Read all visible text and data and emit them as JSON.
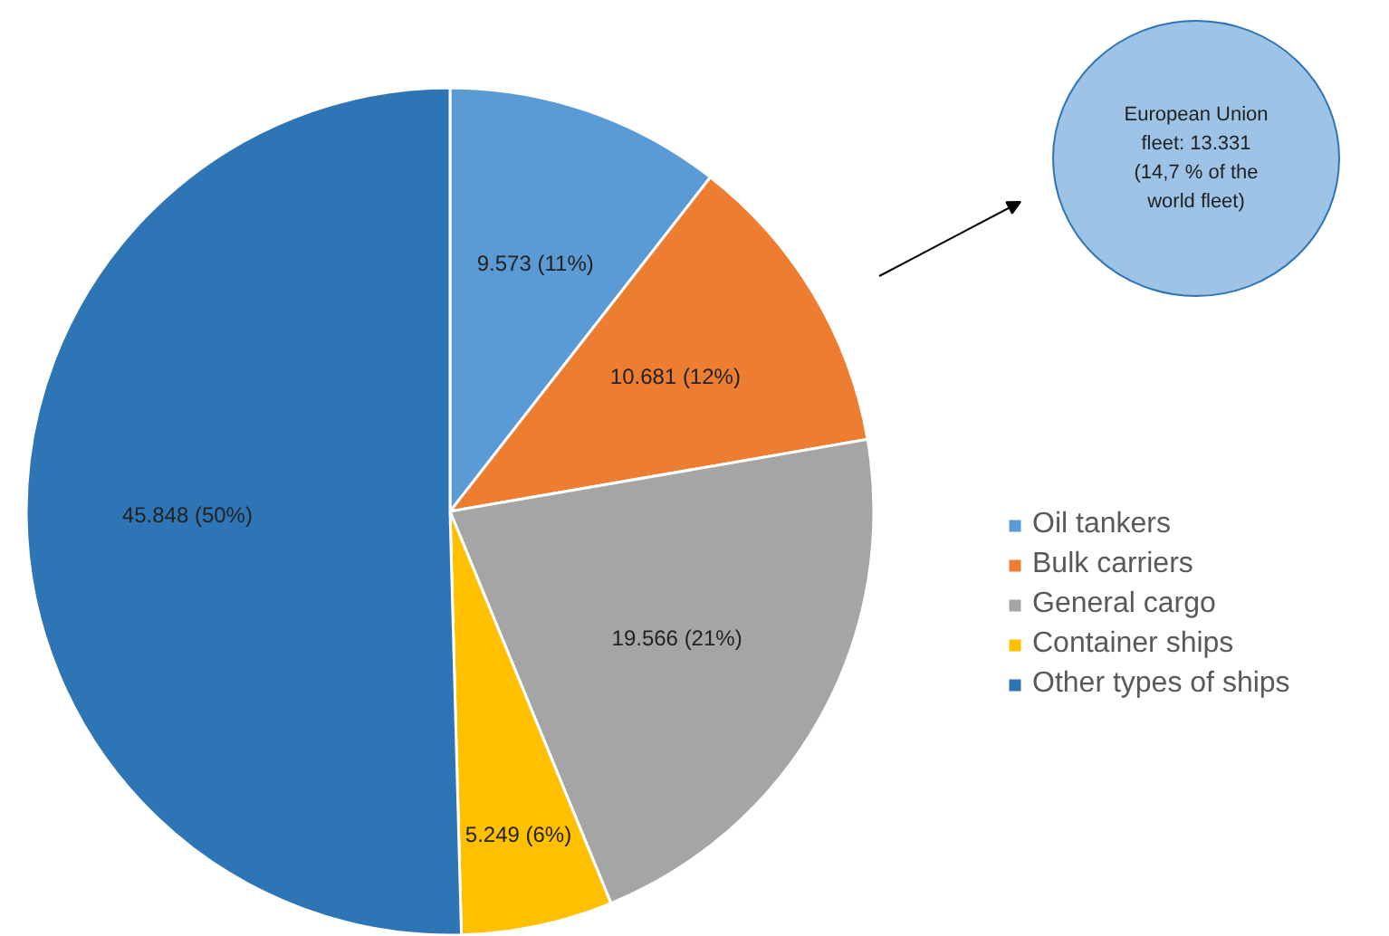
{
  "chart_data": {
    "type": "pie",
    "categories": [
      "Oil tankers",
      "Bulk carriers",
      "General cargo",
      "Container ships",
      "Other types of ships"
    ],
    "values": [
      9.573,
      10.681,
      19.566,
      5.249,
      45.848
    ],
    "colors": [
      "#5b9bd5",
      "#ed7d31",
      "#a5a5a5",
      "#ffc000",
      "#2e75b6"
    ],
    "value_labels": [
      "9.573 (11%)",
      "10.681 (12%)",
      "19.566  (21%)",
      "5.249 (6%)",
      "45.848 (50%)"
    ],
    "legend": "right",
    "annotations": [
      "European Union fleet: 13.331 (14,7 % of the world fleet)"
    ]
  }
}
